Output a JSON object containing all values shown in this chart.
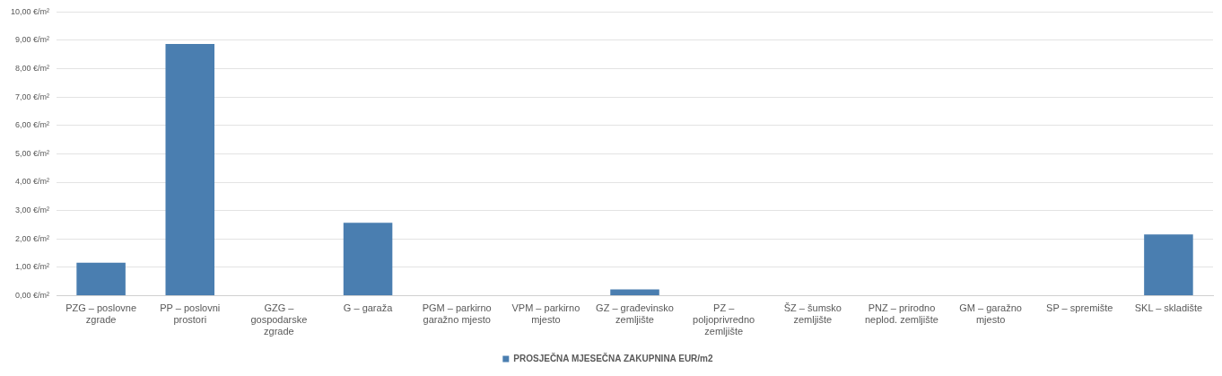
{
  "chart_data": {
    "type": "bar",
    "categories": [
      "PZG – poslovne zgrade",
      "PP – poslovni prostori",
      "GZG – gospodarske zgrade",
      "G – garaža",
      "PGM – parkirno garažno mjesto",
      "VPM – parkirno mjesto",
      "GZ – građevinsko zemljište",
      "PZ – poljoprivredno zemljište",
      "ŠZ – šumsko zemljište",
      "PNZ – prirodno neplod. zemljište",
      "GM – garažno mjesto",
      "SP – spremište",
      "SKL – skladište"
    ],
    "series": [
      {
        "name": "PROSJEČNA MJESEČNA ZAKUPNINA EUR/m2",
        "color": "#4a7eb0",
        "values": [
          1.16,
          8.87,
          0,
          2.57,
          0,
          0,
          0.22,
          0,
          0,
          0,
          0,
          0,
          2.16
        ]
      }
    ],
    "ylim": [
      0,
      10
    ],
    "yticks": [
      {
        "value": 0,
        "label": "0,00 €/m²"
      },
      {
        "value": 1,
        "label": "1,00 €/m²"
      },
      {
        "value": 2,
        "label": "2,00 €/m²"
      },
      {
        "value": 3,
        "label": "3,00 €/m²"
      },
      {
        "value": 4,
        "label": "4,00 €/m²"
      },
      {
        "value": 5,
        "label": "5,00 €/m²"
      },
      {
        "value": 6,
        "label": "6,00 €/m²"
      },
      {
        "value": 7,
        "label": "7,00 €/m²"
      },
      {
        "value": 8,
        "label": "8,00 €/m²"
      },
      {
        "value": 9,
        "label": "9,00 €/m²"
      },
      {
        "value": 10,
        "label": "10,00 €/m²"
      }
    ],
    "grid": "y",
    "legend": "bottom"
  }
}
